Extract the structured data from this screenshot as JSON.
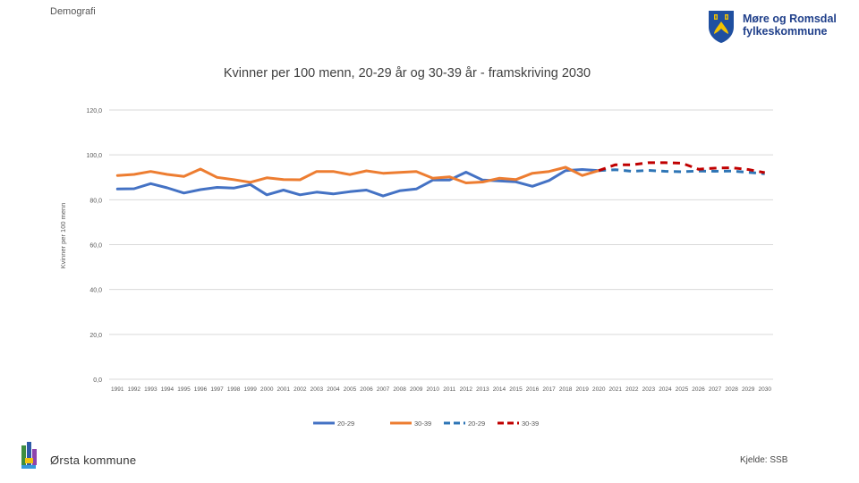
{
  "header": {
    "label": "Demografi"
  },
  "logo": {
    "line1": "Møre og Romsdal",
    "line2": "fylkeskommune"
  },
  "footer": {
    "municipality": "Ørsta kommune",
    "source": "Kjelde: SSB"
  },
  "colors": {
    "blue": "#4472c4",
    "orange": "#ed7d31",
    "proj_blue": "#2e75b6",
    "proj_red": "#c00000",
    "grid": "#d9d9d9"
  },
  "chart_data": {
    "type": "line",
    "title": "Kvinner per 100 menn, 20-29 år og 30-39 år - framskriving 2030",
    "ylabel": "Kvinner per 100 menn",
    "xlabel": "",
    "ylim": [
      0,
      120
    ],
    "yticks": [
      "0,0",
      "20,0",
      "40,0",
      "60,0",
      "80,0",
      "100,0",
      "120,0"
    ],
    "x": [
      1991,
      1992,
      1993,
      1994,
      1995,
      1996,
      1997,
      1998,
      1999,
      2000,
      2001,
      2002,
      2003,
      2004,
      2005,
      2006,
      2007,
      2008,
      2009,
      2010,
      2011,
      2012,
      2013,
      2014,
      2015,
      2016,
      2017,
      2018,
      2019,
      2020,
      2021,
      2022,
      2023,
      2024,
      2025,
      2026,
      2027,
      2028,
      2029,
      2030
    ],
    "grid": true,
    "legend_position": "bottom",
    "series": [
      {
        "name": "20-29",
        "style": "solid",
        "x": [
          1991,
          1992,
          1993,
          1994,
          1995,
          1996,
          1997,
          1998,
          1999,
          2000,
          2001,
          2002,
          2003,
          2004,
          2005,
          2006,
          2007,
          2008,
          2009,
          2010,
          2011,
          2012,
          2013,
          2014,
          2015,
          2016,
          2017,
          2018,
          2019,
          2020
        ],
        "values": [
          84.8,
          84.9,
          87.2,
          85.3,
          83,
          84.5,
          85.5,
          85.2,
          86.8,
          82.2,
          84.3,
          82.2,
          83.4,
          82.6,
          83.6,
          84.3,
          81.7,
          84,
          84.8,
          88.8,
          88.8,
          92.3,
          88.8,
          88.4,
          88,
          86,
          88.6,
          93,
          93.5,
          93
        ]
      },
      {
        "name": "30-39",
        "style": "solid",
        "x": [
          1991,
          1992,
          1993,
          1994,
          1995,
          1996,
          1997,
          1998,
          1999,
          2000,
          2001,
          2002,
          2003,
          2004,
          2005,
          2006,
          2007,
          2008,
          2009,
          2010,
          2011,
          2012,
          2013,
          2014,
          2015,
          2016,
          2017,
          2018,
          2019,
          2020
        ],
        "values": [
          90.8,
          91.3,
          92.6,
          91.3,
          90.4,
          93.7,
          90,
          89,
          87.8,
          89.8,
          89,
          88.9,
          92.6,
          92.6,
          91.2,
          92.9,
          91.8,
          92.2,
          92.6,
          89.6,
          90.2,
          87.5,
          87.9,
          89.6,
          89,
          91.8,
          92.6,
          94.5,
          90.8,
          93
        ]
      },
      {
        "name": "20-29",
        "style": "dashed",
        "x": [
          2020,
          2021,
          2022,
          2023,
          2024,
          2025,
          2026,
          2027,
          2028,
          2029,
          2030
        ],
        "values": [
          93,
          93.4,
          92.7,
          93.1,
          92.7,
          92.5,
          92.8,
          92.7,
          92.8,
          92.2,
          91.6
        ]
      },
      {
        "name": "30-39",
        "style": "dashed",
        "x": [
          2020,
          2021,
          2022,
          2023,
          2024,
          2025,
          2026,
          2027,
          2028,
          2029,
          2030
        ],
        "values": [
          93,
          95.6,
          95.6,
          96.5,
          96.5,
          96.3,
          93.6,
          94.1,
          94.3,
          93.5,
          92.1
        ]
      }
    ]
  }
}
